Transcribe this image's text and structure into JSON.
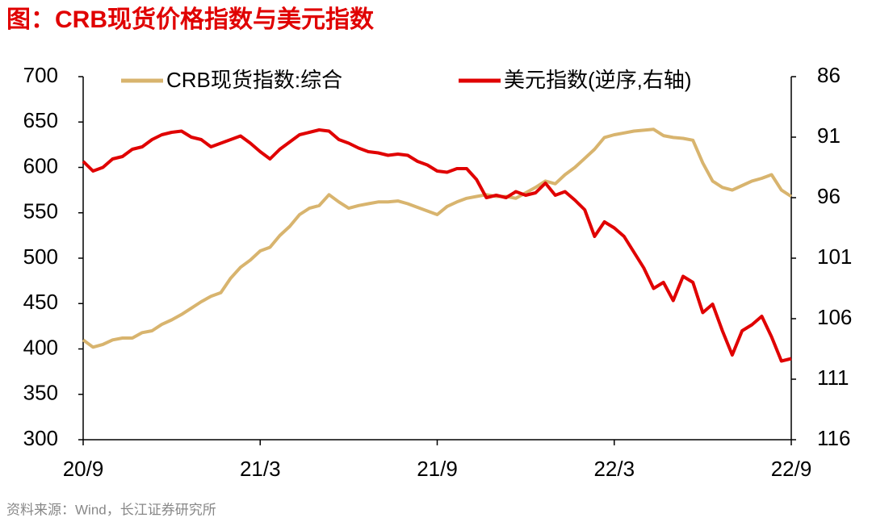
{
  "chart_data": {
    "type": "line",
    "title": "图：CRB现货价格指数与美元指数",
    "source": "资料来源：Wind，长江证券研究所",
    "categories": [
      "20/9",
      null,
      null,
      null,
      null,
      null,
      null,
      null,
      null,
      null,
      null,
      null,
      null,
      null,
      null,
      null,
      null,
      null,
      "21/3",
      null,
      null,
      null,
      null,
      null,
      null,
      null,
      null,
      null,
      null,
      null,
      null,
      null,
      null,
      null,
      null,
      null,
      "21/9",
      null,
      null,
      null,
      null,
      null,
      null,
      null,
      null,
      null,
      null,
      null,
      null,
      null,
      null,
      null,
      null,
      null,
      "22/3",
      null,
      null,
      null,
      null,
      null,
      null,
      null,
      null,
      null,
      null,
      null,
      null,
      null,
      null,
      null,
      null,
      null,
      "22/9"
    ],
    "ylim": [
      300,
      700
    ],
    "yticks": [
      300,
      350,
      400,
      450,
      500,
      550,
      600,
      650,
      700
    ],
    "y2lim": [
      116,
      86
    ],
    "y2ticks": [
      86,
      91,
      96,
      101,
      106,
      111,
      116
    ],
    "grid": false,
    "series": [
      {
        "name": "CRB现货指数:综合",
        "color": "#d8b46e",
        "values": [
          410,
          402,
          405,
          410,
          412,
          412,
          418,
          420,
          427,
          432,
          438,
          445,
          452,
          458,
          462,
          478,
          490,
          498,
          508,
          512,
          525,
          535,
          548,
          555,
          558,
          570,
          562,
          555,
          558,
          560,
          562,
          562,
          563,
          560,
          556,
          552,
          548,
          557,
          562,
          566,
          568,
          570,
          568,
          568,
          566,
          572,
          578,
          585,
          582,
          592,
          600,
          610,
          620,
          633,
          636,
          638,
          640,
          641,
          642,
          635,
          633,
          632,
          630,
          605,
          585,
          578,
          575,
          580,
          585,
          588,
          592,
          575,
          568
        ]
      },
      {
        "name": "美元指数(逆序,右轴)",
        "color": "#e00000",
        "axis": "y2",
        "values": [
          93.0,
          93.8,
          93.5,
          92.8,
          92.6,
          92.0,
          91.8,
          91.2,
          90.8,
          90.6,
          90.5,
          91.0,
          91.2,
          91.8,
          91.5,
          91.2,
          90.9,
          91.5,
          92.2,
          92.8,
          92.0,
          91.4,
          90.8,
          90.6,
          90.4,
          90.5,
          91.2,
          91.5,
          91.9,
          92.2,
          92.3,
          92.5,
          92.4,
          92.5,
          93.0,
          93.3,
          93.8,
          93.9,
          93.6,
          93.6,
          94.5,
          96.0,
          95.8,
          96.0,
          95.5,
          95.8,
          95.6,
          94.8,
          95.8,
          95.5,
          96.2,
          97.0,
          99.2,
          98.0,
          98.5,
          99.2,
          100.5,
          101.8,
          103.5,
          103.0,
          104.5,
          102.5,
          103.0,
          105.5,
          104.8,
          107.0,
          109.0,
          107.0,
          106.5,
          105.8,
          107.5,
          109.5,
          109.3
        ]
      }
    ]
  }
}
